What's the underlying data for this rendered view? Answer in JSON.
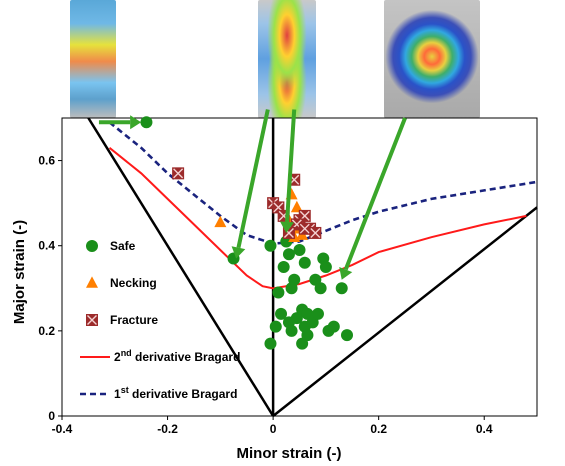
{
  "chart_data": {
    "type": "scatter",
    "xlabel": "Minor strain (-)",
    "ylabel": "Major strain (-)",
    "xlim": [
      -0.4,
      0.5
    ],
    "ylim": [
      0,
      0.7
    ],
    "x_ticks": [
      "-0.4",
      "-0.2",
      "0",
      "0.2",
      "0.4"
    ],
    "y_ticks": [
      "0",
      "0.2",
      "0.4",
      "0.6"
    ],
    "grid": false,
    "legend_position": "bottom-left",
    "series": [
      {
        "name": "Safe",
        "kind": "points",
        "marker": "circle",
        "color": "#1a8f1a",
        "points": [
          [
            -0.24,
            0.69
          ],
          [
            -0.075,
            0.37
          ],
          [
            -0.005,
            0.4
          ],
          [
            0.01,
            0.29
          ],
          [
            0.015,
            0.24
          ],
          [
            0.02,
            0.35
          ],
          [
            0.025,
            0.41
          ],
          [
            0.03,
            0.38
          ],
          [
            0.035,
            0.3
          ],
          [
            0.04,
            0.32
          ],
          [
            0.05,
            0.39
          ],
          [
            0.06,
            0.36
          ],
          [
            0.045,
            0.23
          ],
          [
            0.055,
            0.25
          ],
          [
            0.06,
            0.21
          ],
          [
            0.065,
            0.24
          ],
          [
            0.075,
            0.22
          ],
          [
            0.08,
            0.32
          ],
          [
            0.09,
            0.3
          ],
          [
            0.095,
            0.37
          ],
          [
            0.1,
            0.35
          ],
          [
            0.105,
            0.2
          ],
          [
            0.115,
            0.21
          ],
          [
            0.13,
            0.3
          ],
          [
            0.14,
            0.19
          ],
          [
            -0.005,
            0.17
          ],
          [
            0.005,
            0.21
          ],
          [
            0.03,
            0.22
          ],
          [
            0.035,
            0.2
          ],
          [
            0.055,
            0.17
          ],
          [
            0.065,
            0.19
          ],
          [
            0.085,
            0.24
          ]
        ]
      },
      {
        "name": "Necking",
        "kind": "points",
        "marker": "triangle",
        "color": "#ff7f00",
        "points": [
          [
            -0.1,
            0.455
          ],
          [
            0.03,
            0.46
          ],
          [
            0.035,
            0.52
          ],
          [
            0.045,
            0.49
          ],
          [
            0.05,
            0.44
          ],
          [
            0.04,
            0.42
          ],
          [
            0.055,
            0.425
          ]
        ]
      },
      {
        "name": "Fracture",
        "kind": "points",
        "marker": "x-square",
        "color": "#9c2b2b",
        "points": [
          [
            -0.18,
            0.57
          ],
          [
            0,
            0.5
          ],
          [
            0.01,
            0.49
          ],
          [
            0.02,
            0.47
          ],
          [
            0.04,
            0.555
          ],
          [
            0.05,
            0.46
          ],
          [
            0.06,
            0.47
          ],
          [
            0.07,
            0.44
          ],
          [
            0.045,
            0.45
          ],
          [
            0.06,
            0.44
          ],
          [
            0.08,
            0.43
          ],
          [
            0.03,
            0.43
          ]
        ]
      },
      {
        "name": "2nd derivative Bragard",
        "name_base": "2",
        "name_sup": "nd",
        "name_rest": " derivative Bragard",
        "kind": "line",
        "style": "solid",
        "color": "#ff1a1a",
        "points": [
          [
            -0.31,
            0.63
          ],
          [
            -0.25,
            0.57
          ],
          [
            -0.2,
            0.51
          ],
          [
            -0.15,
            0.45
          ],
          [
            -0.1,
            0.39
          ],
          [
            -0.05,
            0.33
          ],
          [
            -0.02,
            0.305
          ],
          [
            0,
            0.3
          ],
          [
            0.05,
            0.31
          ],
          [
            0.1,
            0.33
          ],
          [
            0.15,
            0.355
          ],
          [
            0.2,
            0.385
          ],
          [
            0.3,
            0.42
          ],
          [
            0.4,
            0.45
          ],
          [
            0.48,
            0.47
          ]
        ]
      },
      {
        "name": "1st derivative Bragard",
        "name_base": "1",
        "name_sup": "st",
        "name_rest": " derivative Bragard",
        "kind": "line",
        "style": "dashed",
        "color": "#1a237e",
        "points": [
          [
            -0.31,
            0.69
          ],
          [
            -0.25,
            0.63
          ],
          [
            -0.2,
            0.57
          ],
          [
            -0.15,
            0.52
          ],
          [
            -0.1,
            0.47
          ],
          [
            -0.05,
            0.425
          ],
          [
            0,
            0.405
          ],
          [
            0.05,
            0.41
          ],
          [
            0.1,
            0.435
          ],
          [
            0.15,
            0.46
          ],
          [
            0.2,
            0.48
          ],
          [
            0.3,
            0.51
          ],
          [
            0.4,
            0.53
          ],
          [
            0.5,
            0.55
          ]
        ]
      }
    ],
    "reference_lines": [
      {
        "name": "left-limit-line",
        "points": [
          [
            -0.35,
            0.7
          ],
          [
            0,
            0
          ]
        ]
      },
      {
        "name": "right-limit-line",
        "points": [
          [
            0,
            0
          ],
          [
            0.5,
            0.49
          ]
        ]
      },
      {
        "name": "plane-strain-line",
        "points": [
          [
            0,
            0
          ],
          [
            0,
            0.7
          ]
        ]
      }
    ],
    "arrows": [
      {
        "name": "arrow-to-safe-point",
        "from": [
          -0.33,
          0.69
        ],
        "to": [
          -0.25,
          0.69
        ]
      },
      {
        "name": "arrow-to-plane-strain",
        "from": [
          -0.01,
          0.72
        ],
        "to": [
          -0.07,
          0.37
        ]
      },
      {
        "name": "arrow-to-necking-group",
        "from": [
          0.04,
          0.72
        ],
        "to": [
          0.025,
          0.43
        ]
      },
      {
        "name": "arrow-to-biaxial",
        "from": [
          0.25,
          0.7
        ],
        "to": [
          0.13,
          0.32
        ]
      }
    ]
  },
  "photos": [
    {
      "name": "specimen-photo-narrow",
      "colors": [
        "#ffd000",
        "#3aa3ff"
      ]
    },
    {
      "name": "specimen-photo-notched",
      "colors": [
        "#e04040",
        "#9be24a"
      ]
    },
    {
      "name": "specimen-photo-dome",
      "colors": [
        "#e8d040",
        "#3fae6a"
      ]
    }
  ]
}
